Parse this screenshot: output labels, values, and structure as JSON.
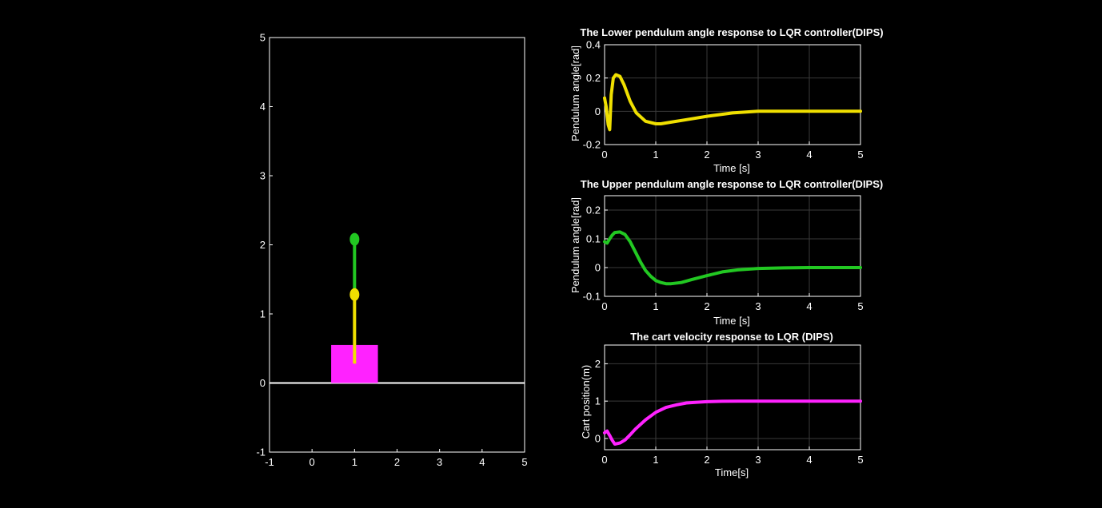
{
  "colors": {
    "background": "#000000",
    "axis": "#ffffff",
    "grid": "#3a3a3a",
    "lower_pendulum": "#f0e000",
    "upper_pendulum": "#22c822",
    "cart": "#ff22ff",
    "ground": "#ffffff"
  },
  "chart_data": [
    {
      "id": "animation",
      "type": "scatter",
      "title": "",
      "xlabel": "",
      "ylabel": "",
      "xlim": [
        -1,
        5
      ],
      "ylim": [
        -1,
        5
      ],
      "xticks": [
        -1,
        0,
        1,
        2,
        3,
        4,
        5
      ],
      "yticks": [
        -1,
        0,
        1,
        2,
        3,
        4,
        5
      ],
      "grid": false,
      "ground_y": 0,
      "cart": {
        "x0": 0.45,
        "x1": 1.55,
        "y0": 0,
        "y1": 0.55
      },
      "lower_link": {
        "x0": 1.0,
        "y0": 0.28,
        "x1": 1.0,
        "y1": 1.28
      },
      "upper_link": {
        "x0": 1.0,
        "y0": 1.28,
        "x1": 1.0,
        "y1": 2.08
      },
      "lower_bob": {
        "x": 1.0,
        "y": 1.28
      },
      "upper_bob": {
        "x": 1.0,
        "y": 2.08
      }
    },
    {
      "id": "lower",
      "type": "line",
      "title": "The Lower pendulum angle response to LQR controller(DIPS)",
      "xlabel": "Time [s]",
      "ylabel": "Pendulum angle[rad]",
      "xlim": [
        0,
        5
      ],
      "ylim": [
        -0.2,
        0.4
      ],
      "xticks": [
        0,
        1,
        2,
        3,
        4,
        5
      ],
      "yticks": [
        -0.2,
        0,
        0.2,
        0.4
      ],
      "grid": true,
      "series": [
        {
          "name": "lower",
          "x": [
            0,
            0.03,
            0.07,
            0.1,
            0.13,
            0.17,
            0.22,
            0.3,
            0.38,
            0.5,
            0.62,
            0.8,
            1.0,
            1.1,
            1.3,
            1.6,
            2.0,
            2.5,
            3.0,
            3.5,
            4.0,
            5.0
          ],
          "y": [
            0.08,
            0.03,
            -0.08,
            -0.11,
            0.1,
            0.2,
            0.22,
            0.21,
            0.16,
            0.06,
            -0.01,
            -0.06,
            -0.075,
            -0.075,
            -0.065,
            -0.05,
            -0.03,
            -0.01,
            0.0,
            0.0,
            0.0,
            0.0
          ]
        }
      ]
    },
    {
      "id": "upper",
      "type": "line",
      "title": "The Upper pendulum angle response to LQR controller(DIPS)",
      "xlabel": "Time [s]",
      "ylabel": "Pendulum angle[rad]",
      "xlim": [
        0,
        5
      ],
      "ylim": [
        -0.1,
        0.25
      ],
      "xticks": [
        0,
        1,
        2,
        3,
        4,
        5
      ],
      "yticks": [
        -0.1,
        0,
        0.1,
        0.2
      ],
      "grid": true,
      "series": [
        {
          "name": "upper",
          "x": [
            0,
            0.05,
            0.1,
            0.15,
            0.2,
            0.3,
            0.4,
            0.5,
            0.6,
            0.7,
            0.8,
            0.9,
            1.0,
            1.1,
            1.2,
            1.3,
            1.5,
            1.7,
            2.0,
            2.3,
            2.6,
            3.0,
            3.5,
            4.0,
            5.0
          ],
          "y": [
            0.09,
            0.085,
            0.1,
            0.113,
            0.122,
            0.124,
            0.115,
            0.09,
            0.055,
            0.02,
            -0.01,
            -0.03,
            -0.045,
            -0.052,
            -0.056,
            -0.056,
            -0.052,
            -0.042,
            -0.028,
            -0.015,
            -0.008,
            -0.003,
            -0.001,
            0.0,
            0.0
          ]
        }
      ]
    },
    {
      "id": "cart",
      "type": "line",
      "title": "The cart velocity response to LQR (DIPS)",
      "xlabel": "Time[s]",
      "ylabel": "Cart position(m)",
      "xlim": [
        0,
        5
      ],
      "ylim": [
        -0.3,
        2.5
      ],
      "xticks": [
        0,
        1,
        2,
        3,
        4,
        5
      ],
      "yticks": [
        0,
        1,
        2
      ],
      "grid": true,
      "series": [
        {
          "name": "cart",
          "x": [
            0,
            0.05,
            0.1,
            0.15,
            0.2,
            0.3,
            0.4,
            0.5,
            0.6,
            0.8,
            1.0,
            1.2,
            1.4,
            1.6,
            1.8,
            2.0,
            2.3,
            2.6,
            3.0,
            3.5,
            4.0,
            5.0
          ],
          "y": [
            0.15,
            0.2,
            0.08,
            -0.05,
            -0.15,
            -0.12,
            -0.04,
            0.1,
            0.25,
            0.5,
            0.7,
            0.83,
            0.9,
            0.95,
            0.97,
            0.985,
            0.995,
            1.0,
            1.0,
            1.0,
            1.0,
            1.0
          ]
        }
      ]
    }
  ]
}
